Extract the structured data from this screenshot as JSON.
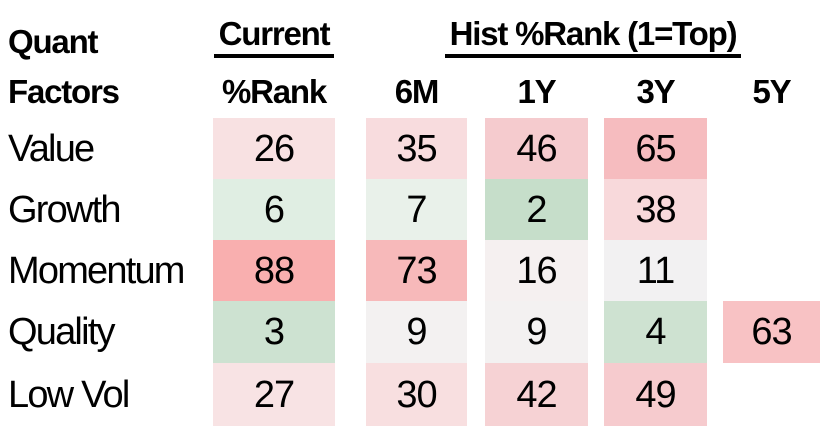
{
  "table": {
    "corner_title_line1": "Quant",
    "corner_title_line2": "Factors",
    "current_group_label": "Current",
    "current_sub_label": "%Rank",
    "hist_group_label": "Hist %Rank (1=Top)",
    "hist_columns": [
      "6M",
      "1Y",
      "3Y",
      "5Y"
    ],
    "rows": [
      {
        "label": "Value",
        "cells": [
          {
            "value": "26",
            "color": "#F8E1E2"
          },
          {
            "value": "35",
            "color": "#F8DCDE"
          },
          {
            "value": "46",
            "color": "#F5CBCE"
          },
          {
            "value": "65",
            "color": "#F6BCBF"
          },
          {
            "value": null,
            "color": null
          }
        ]
      },
      {
        "label": "Growth",
        "cells": [
          {
            "value": "6",
            "color": "#E0EEE3"
          },
          {
            "value": "7",
            "color": "#E9F1EA"
          },
          {
            "value": "2",
            "color": "#C6DECA"
          },
          {
            "value": "38",
            "color": "#F8D9DB"
          },
          {
            "value": null,
            "color": null
          }
        ]
      },
      {
        "label": "Momentum",
        "cells": [
          {
            "value": "88",
            "color": "#F9AFAF"
          },
          {
            "value": "73",
            "color": "#F7B9BA"
          },
          {
            "value": "16",
            "color": "#F5F0F0"
          },
          {
            "value": "11",
            "color": "#F2F1F2"
          },
          {
            "value": null,
            "color": null
          }
        ]
      },
      {
        "label": "Quality",
        "cells": [
          {
            "value": "3",
            "color": "#CDE2D1"
          },
          {
            "value": "9",
            "color": "#F3F1F1"
          },
          {
            "value": "9",
            "color": "#F3F1F1"
          },
          {
            "value": "4",
            "color": "#CEE2D1"
          },
          {
            "value": "63",
            "color": "#F8C2C4"
          }
        ]
      },
      {
        "label": "Low Vol",
        "cells": [
          {
            "value": "27",
            "color": "#F8E3E4"
          },
          {
            "value": "30",
            "color": "#F8DFE0"
          },
          {
            "value": "42",
            "color": "#F6D2D4"
          },
          {
            "value": "49",
            "color": "#F6CBCE"
          },
          {
            "value": null,
            "color": null
          }
        ]
      }
    ]
  },
  "colors": {
    "background": "#FFFFFF",
    "text": "#000000",
    "heat_high_red": "#F9AFAF",
    "heat_low_green": "#C6DECA",
    "heat_mid_white": "#F3F1F1"
  },
  "chart_data": {
    "type": "heatmap",
    "title": "Quant Factors",
    "row_labels": [
      "Value",
      "Growth",
      "Momentum",
      "Quality",
      "Low Vol"
    ],
    "column_labels": [
      "Current %Rank",
      "6M",
      "1Y",
      "3Y",
      "5Y"
    ],
    "column_groups": [
      {
        "label": "Current",
        "columns": [
          "%Rank"
        ]
      },
      {
        "label": "Hist %Rank (1=Top)",
        "columns": [
          "6M",
          "1Y",
          "3Y",
          "5Y"
        ]
      }
    ],
    "values": [
      [
        26,
        35,
        46,
        65,
        null
      ],
      [
        6,
        7,
        2,
        38,
        null
      ],
      [
        88,
        73,
        16,
        11,
        null
      ],
      [
        3,
        9,
        9,
        4,
        63
      ],
      [
        27,
        30,
        42,
        49,
        null
      ]
    ],
    "value_range": [
      1,
      100
    ],
    "color_scale": {
      "low": "green",
      "mid": "near-white",
      "high": "red",
      "legend_note": "1=Top"
    }
  }
}
